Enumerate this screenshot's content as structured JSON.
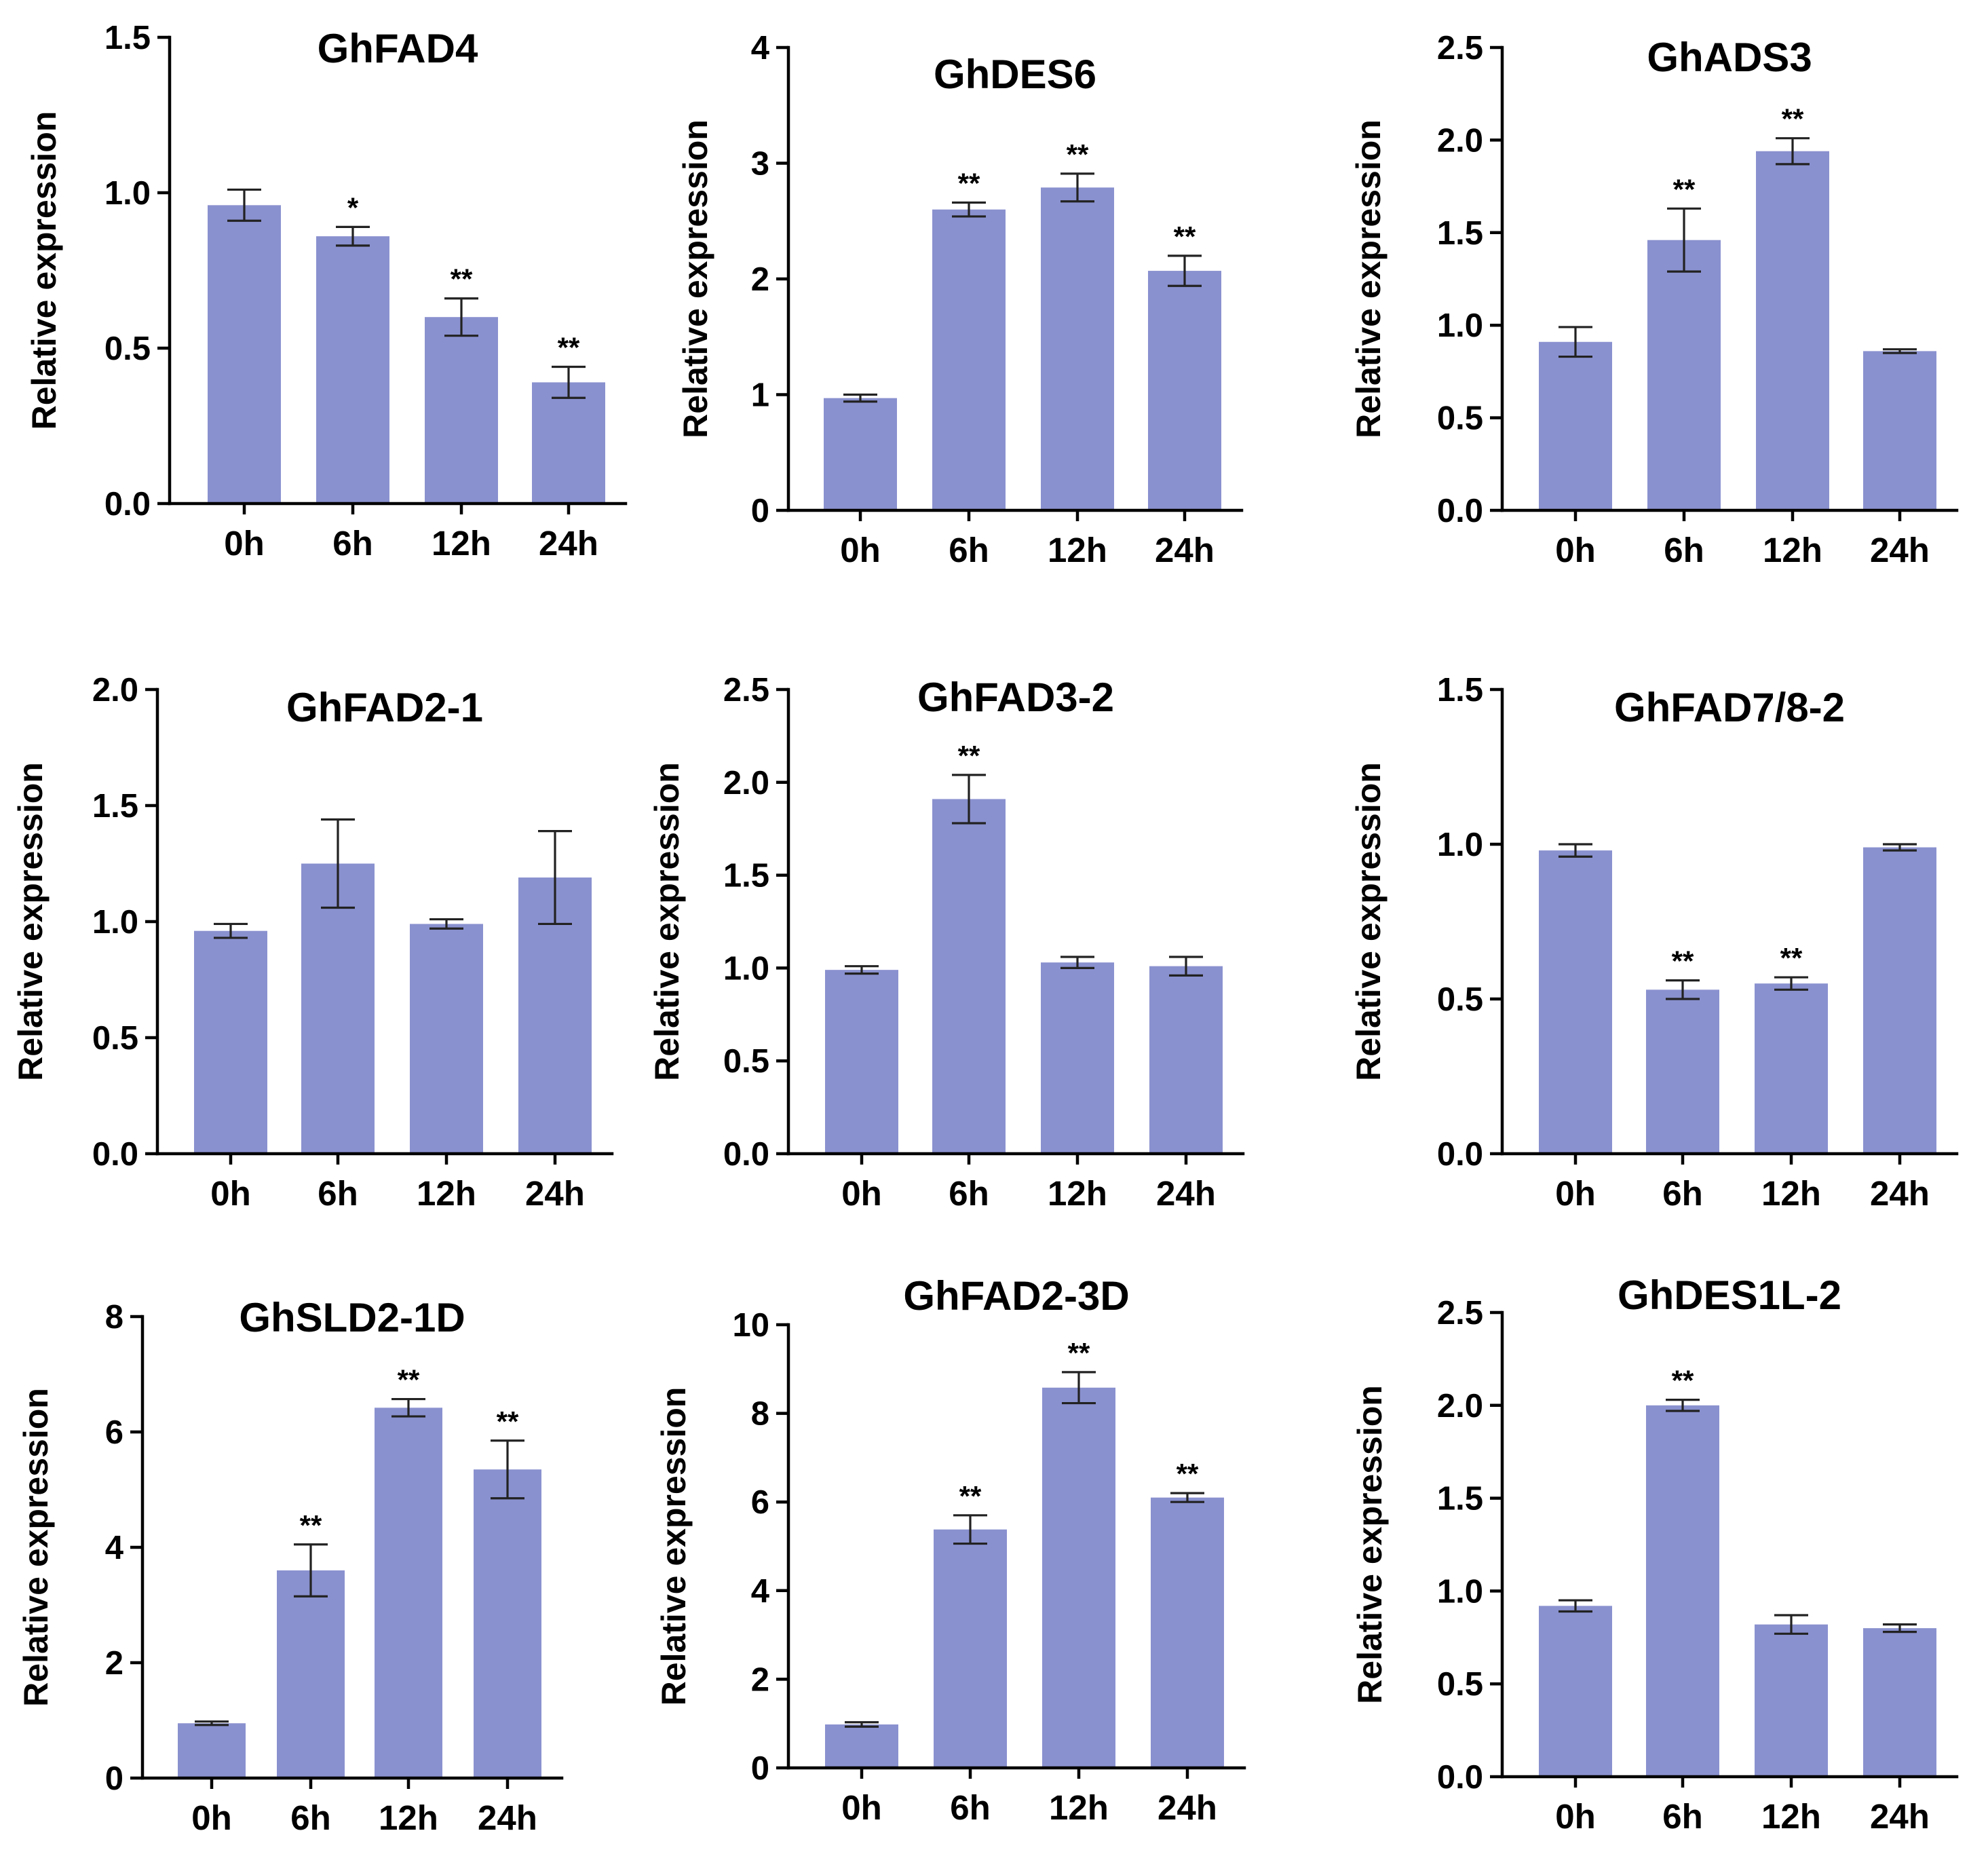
{
  "figure": {
    "bar_color": "#8a91cf",
    "axis_color": "#000000",
    "error_bar_color": "#222222"
  },
  "chart_data": [
    {
      "type": "bar",
      "title": "GhFAD4",
      "ylabel": "Relative expression",
      "xlabel": "",
      "categories": [
        "0h",
        "6h",
        "12h",
        "24h"
      ],
      "values": [
        0.96,
        0.86,
        0.6,
        0.39
      ],
      "errors": [
        0.05,
        0.03,
        0.06,
        0.05
      ],
      "significance": [
        "",
        "*",
        "**",
        "**"
      ],
      "ylim": [
        0,
        1.5
      ],
      "yticks": [
        0.0,
        0.5,
        1.0,
        1.5
      ],
      "ytick_labels": [
        "0.0",
        "0.5",
        "1.0",
        "1.5"
      ]
    },
    {
      "type": "bar",
      "title": "GhDES6",
      "ylabel": "Relative expression",
      "xlabel": "",
      "categories": [
        "0h",
        "6h",
        "12h",
        "24h"
      ],
      "values": [
        0.97,
        2.6,
        2.79,
        2.07
      ],
      "errors": [
        0.03,
        0.06,
        0.12,
        0.13
      ],
      "significance": [
        "",
        "**",
        "**",
        "**"
      ],
      "ylim": [
        0,
        4
      ],
      "yticks": [
        0,
        1,
        2,
        3,
        4
      ],
      "ytick_labels": [
        "0",
        "1",
        "2",
        "3",
        "4"
      ]
    },
    {
      "type": "bar",
      "title": "GhADS3",
      "ylabel": "Relative expression",
      "xlabel": "",
      "categories": [
        "0h",
        "6h",
        "12h",
        "24h"
      ],
      "values": [
        0.91,
        1.46,
        1.94,
        0.86
      ],
      "errors": [
        0.08,
        0.17,
        0.07,
        0.01
      ],
      "significance": [
        "",
        "**",
        "**",
        ""
      ],
      "ylim": [
        0,
        2.5
      ],
      "yticks": [
        0.0,
        0.5,
        1.0,
        1.5,
        2.0,
        2.5
      ],
      "ytick_labels": [
        "0.0",
        "0.5",
        "1.0",
        "1.5",
        "2.0",
        "2.5"
      ]
    },
    {
      "type": "bar",
      "title": "GhFAD2-1",
      "ylabel": "Relative expression",
      "xlabel": "",
      "categories": [
        "0h",
        "6h",
        "12h",
        "24h"
      ],
      "values": [
        0.96,
        1.25,
        0.99,
        1.19
      ],
      "errors": [
        0.03,
        0.19,
        0.02,
        0.2
      ],
      "significance": [
        "",
        "",
        "",
        ""
      ],
      "ylim": [
        0,
        2.0
      ],
      "yticks": [
        0.0,
        0.5,
        1.0,
        1.5,
        2.0
      ],
      "ytick_labels": [
        "0.0",
        "0.5",
        "1.0",
        "1.5",
        "2.0"
      ]
    },
    {
      "type": "bar",
      "title": "GhFAD3-2",
      "ylabel": "Relative expression",
      "xlabel": "",
      "categories": [
        "0h",
        "6h",
        "12h",
        "24h"
      ],
      "values": [
        0.99,
        1.91,
        1.03,
        1.01
      ],
      "errors": [
        0.02,
        0.13,
        0.03,
        0.05
      ],
      "significance": [
        "",
        "**",
        "",
        ""
      ],
      "ylim": [
        0,
        2.5
      ],
      "yticks": [
        0.0,
        0.5,
        1.0,
        1.5,
        2.0,
        2.5
      ],
      "ytick_labels": [
        "0.0",
        "0.5",
        "1.0",
        "1.5",
        "2.0",
        "2.5"
      ]
    },
    {
      "type": "bar",
      "title": "GhFAD7/8-2",
      "ylabel": "Relative expression",
      "xlabel": "",
      "categories": [
        "0h",
        "6h",
        "12h",
        "24h"
      ],
      "values": [
        0.98,
        0.53,
        0.55,
        0.99
      ],
      "errors": [
        0.02,
        0.03,
        0.02,
        0.01
      ],
      "significance": [
        "",
        "**",
        "**",
        ""
      ],
      "ylim": [
        0,
        1.5
      ],
      "yticks": [
        0.0,
        0.5,
        1.0,
        1.5
      ],
      "ytick_labels": [
        "0.0",
        "0.5",
        "1.0",
        "1.5"
      ]
    },
    {
      "type": "bar",
      "title": "GhSLD2-1D",
      "ylabel": "Relative expression",
      "xlabel": "",
      "categories": [
        "0h",
        "6h",
        "12h",
        "24h"
      ],
      "values": [
        0.95,
        3.6,
        6.42,
        5.35
      ],
      "errors": [
        0.03,
        0.45,
        0.15,
        0.5
      ],
      "significance": [
        "",
        "**",
        "**",
        "**"
      ],
      "ylim": [
        0,
        8
      ],
      "yticks": [
        0,
        2,
        4,
        6,
        8
      ],
      "ytick_labels": [
        "0",
        "2",
        "4",
        "6",
        "8"
      ]
    },
    {
      "type": "bar",
      "title": "GhFAD2-3D",
      "ylabel": "Relative expression",
      "xlabel": "",
      "categories": [
        "0h",
        "6h",
        "12h",
        "24h"
      ],
      "values": [
        0.98,
        5.38,
        8.58,
        6.1
      ],
      "errors": [
        0.05,
        0.32,
        0.35,
        0.1
      ],
      "significance": [
        "",
        "**",
        "**",
        "**"
      ],
      "ylim": [
        0,
        10
      ],
      "yticks": [
        0,
        2,
        4,
        6,
        8,
        10
      ],
      "ytick_labels": [
        "0",
        "2",
        "4",
        "6",
        "8",
        "10"
      ]
    },
    {
      "type": "bar",
      "title": "GhDES1L-2",
      "ylabel": "Relative expression",
      "xlabel": "",
      "categories": [
        "0h",
        "6h",
        "12h",
        "24h"
      ],
      "values": [
        0.92,
        2.0,
        0.82,
        0.8
      ],
      "errors": [
        0.03,
        0.03,
        0.05,
        0.02
      ],
      "significance": [
        "",
        "**",
        "",
        ""
      ],
      "ylim": [
        0,
        2.5
      ],
      "yticks": [
        0.0,
        0.5,
        1.0,
        1.5,
        2.0,
        2.5
      ],
      "ytick_labels": [
        "0.0",
        "0.5",
        "1.0",
        "1.5",
        "2.0",
        "2.5"
      ]
    }
  ]
}
